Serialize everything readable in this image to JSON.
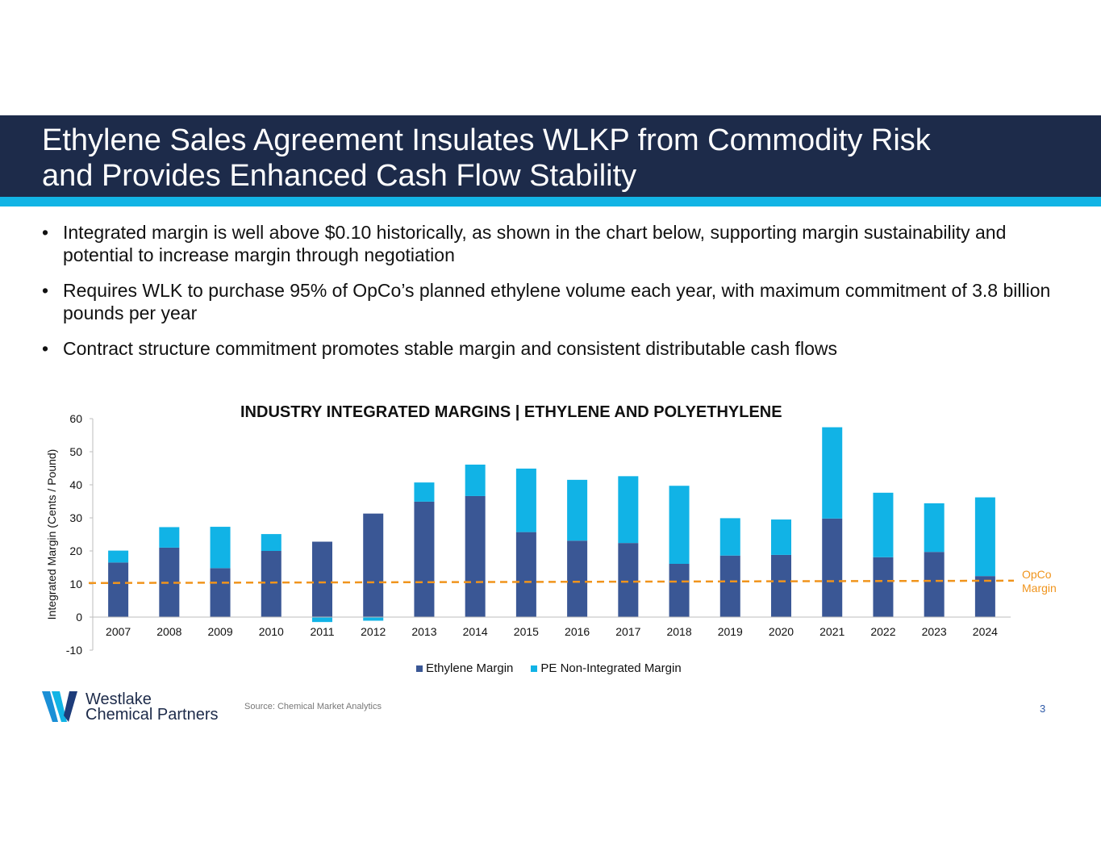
{
  "slide": {
    "title_line1": "Ethylene Sales Agreement Insulates WLKP from Commodity Risk",
    "title_line2": "and Provides Enhanced Cash Flow Stability",
    "bullets": [
      "Integrated margin is well above $0.10 historically, as shown in the chart below, supporting margin sustainability and potential to increase margin through negotiation",
      "Requires WLK to purchase 95% of OpCo’s planned ethylene volume each year, with maximum commitment of 3.8 billion pounds per year",
      "Contract structure commitment promotes stable margin and consistent distributable cash flows"
    ],
    "bullet_symbol": "•",
    "source": "Source: Chemical Market Analytics",
    "page_number": "3",
    "logo_line1": "Westlake",
    "logo_line2": "Chemical Partners"
  },
  "colors": {
    "header_bg": "#1d2b4a",
    "accent": "#12b4e5",
    "ethylene": "#3a5795",
    "pe": "#11b3e6",
    "opco": "#f0941c"
  },
  "chart_data": {
    "type": "bar",
    "stacked": true,
    "title": "INDUSTRY INTEGRATED MARGINS | ETHYLENE AND POLYETHYLENE",
    "ylabel": "Integrated Margin (Cents / Pound)",
    "xlabel": "",
    "ylim": [
      -10,
      60
    ],
    "yticks": [
      -10,
      0,
      10,
      20,
      30,
      40,
      50,
      60
    ],
    "categories": [
      "2007",
      "2008",
      "2009",
      "2010",
      "2011",
      "2012",
      "2013",
      "2014",
      "2015",
      "2016",
      "2017",
      "2018",
      "2019",
      "2020",
      "2021",
      "2022",
      "2023",
      "2024"
    ],
    "series": [
      {
        "name": "Ethylene Margin",
        "values": [
          16.5,
          21.0,
          14.8,
          20.0,
          22.8,
          31.3,
          34.9,
          36.6,
          25.7,
          23.1,
          22.4,
          16.1,
          18.6,
          18.8,
          29.8,
          18.1,
          19.7,
          12.4
        ]
      },
      {
        "name": "PE Non-Integrated Margin",
        "values": [
          3.6,
          6.2,
          12.5,
          5.1,
          -1.5,
          -1.1,
          5.8,
          9.5,
          19.2,
          18.4,
          20.2,
          23.6,
          11.3,
          10.7,
          27.6,
          19.5,
          14.7,
          23.8
        ]
      }
    ],
    "reference_line": {
      "label_line1": "OpCo",
      "label_line2": "Margin",
      "start_value": 10.3,
      "end_value": 11.0,
      "style": "dashed"
    }
  }
}
